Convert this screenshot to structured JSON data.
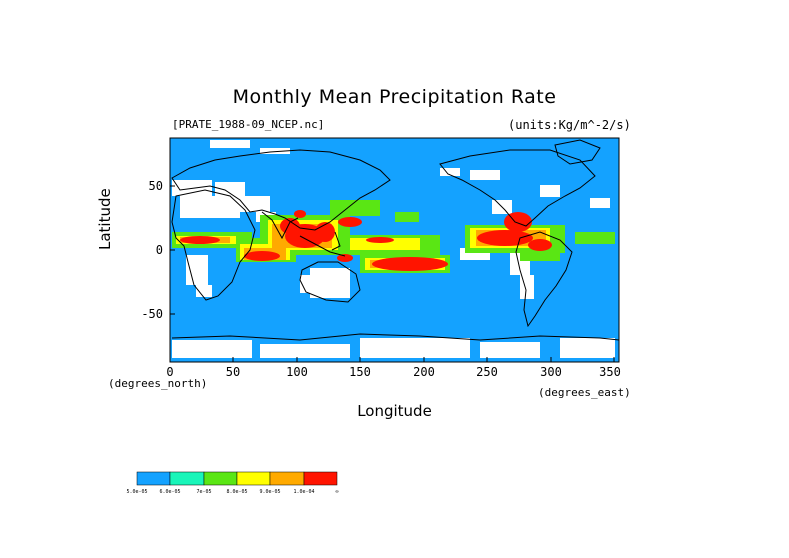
{
  "title": "Monthly Mean Precipitation Rate",
  "file_label": "[PRATE_1988-09_NCEP.nc]",
  "units_label": "(units:Kg/m^-2/s)",
  "x_axis": {
    "label": "Longitude",
    "unit_label": "(degrees_east)",
    "ticks": [
      "0",
      "50",
      "100",
      "150",
      "200",
      "250",
      "300",
      "350"
    ]
  },
  "y_axis": {
    "label": "Latitude",
    "unit_label": "(degrees_north)",
    "ticks": [
      "50",
      "0",
      "-50"
    ]
  },
  "colors": {
    "ocean_base": "#14a2ff",
    "dry": "#ffffff",
    "levels": [
      "#14a2ff",
      "#19f5b9",
      "#5ae614",
      "#ffff00",
      "#ffaa00",
      "#ff1400"
    ]
  },
  "colorbar": {
    "labels": [
      "5.0e-05",
      "6.0e-05",
      "7e-05",
      "8.0e-05",
      "9.0e-05",
      "1.0e-04",
      "∞"
    ]
  }
}
